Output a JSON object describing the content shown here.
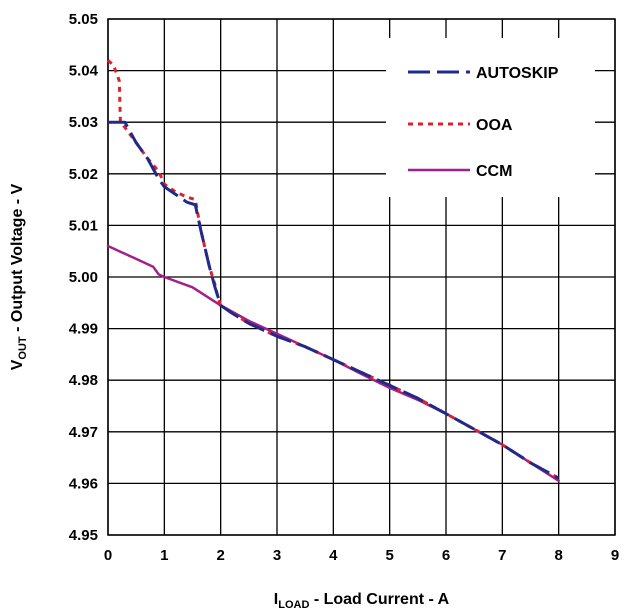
{
  "chart_data": {
    "type": "line",
    "xlabel": {
      "main": "I",
      "sub": "LOAD",
      "rest": " - Load Current - A"
    },
    "ylabel": {
      "main": "V",
      "sub": "OUT",
      "rest": " - Output Voltage - V"
    },
    "xlim": [
      0,
      9
    ],
    "ylim": [
      4.95,
      5.05
    ],
    "x_ticks": [
      "0",
      "1",
      "2",
      "3",
      "4",
      "5",
      "6",
      "7",
      "8",
      "9"
    ],
    "y_ticks": [
      "4.95",
      "4.96",
      "4.97",
      "4.98",
      "4.99",
      "5.00",
      "5.01",
      "5.02",
      "5.03",
      "5.04",
      "5.05"
    ],
    "grid": true,
    "legend_position": "top-right",
    "series": [
      {
        "name": "AUTOSKIP",
        "color": "#1f2a8a",
        "style": "long-dash",
        "x": [
          0.0,
          0.2,
          0.3,
          0.5,
          0.7,
          0.9,
          1.0,
          1.2,
          1.4,
          1.55,
          1.65,
          1.8,
          1.9,
          2.0,
          2.2,
          2.5,
          3.0,
          3.5,
          4.0,
          4.5,
          5.0,
          5.5,
          6.0,
          6.5,
          7.0,
          7.5,
          8.0
        ],
        "y": [
          5.03,
          5.03,
          5.03,
          5.026,
          5.023,
          5.019,
          5.0175,
          5.016,
          5.0145,
          5.014,
          5.009,
          5.002,
          4.998,
          4.9945,
          4.993,
          4.991,
          4.9885,
          4.9865,
          4.984,
          4.9815,
          4.979,
          4.9765,
          4.9735,
          4.9705,
          4.9675,
          4.964,
          4.961
        ]
      },
      {
        "name": "OOA",
        "color": "#e0202a",
        "style": "dot",
        "x": [
          0.0,
          0.1,
          0.2,
          0.22,
          0.3,
          0.5,
          0.7,
          0.9,
          1.0,
          1.2,
          1.4,
          1.55,
          1.65,
          1.8,
          1.9,
          1.95,
          2.0,
          2.5,
          3.0,
          3.5,
          4.0,
          4.5,
          5.0,
          5.5,
          6.0,
          6.5,
          7.0,
          7.5,
          8.0
        ],
        "y": [
          5.042,
          5.041,
          5.038,
          5.03,
          5.029,
          5.026,
          5.023,
          5.0205,
          5.018,
          5.0165,
          5.0155,
          5.015,
          5.009,
          5.002,
          4.9985,
          4.996,
          4.9945,
          4.991,
          4.9885,
          4.9865,
          4.984,
          4.9815,
          4.979,
          4.9765,
          4.9735,
          4.9705,
          4.9675,
          4.964,
          4.961
        ]
      },
      {
        "name": "CCM",
        "color": "#a3208a",
        "style": "solid",
        "x": [
          0.0,
          0.2,
          0.5,
          0.8,
          0.9,
          1.0,
          1.5,
          2.0,
          2.5,
          3.0,
          3.5,
          4.0,
          4.5,
          5.0,
          5.5,
          6.0,
          6.5,
          7.0,
          7.5,
          8.0
        ],
        "y": [
          5.006,
          5.005,
          5.0035,
          5.002,
          5.0005,
          5.0,
          4.998,
          4.9945,
          4.9915,
          4.989,
          4.9865,
          4.984,
          4.9812,
          4.9785,
          4.9762,
          4.9735,
          4.9705,
          4.9675,
          4.964,
          4.9605
        ]
      }
    ]
  }
}
